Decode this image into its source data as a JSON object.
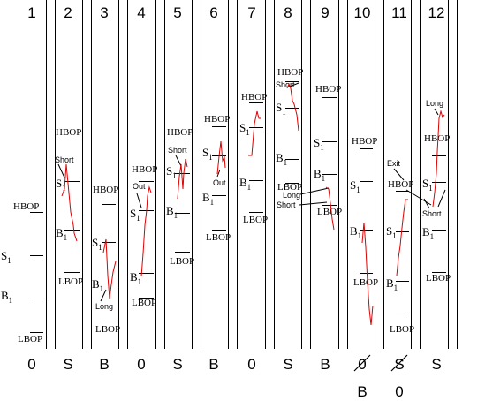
{
  "columns": [
    {
      "num": "1",
      "result": "0",
      "result_struck": false,
      "extra": ""
    },
    {
      "num": "2",
      "result": "S",
      "result_struck": false,
      "extra": ""
    },
    {
      "num": "3",
      "result": "B",
      "result_struck": false,
      "extra": ""
    },
    {
      "num": "4",
      "result": "0",
      "result_struck": false,
      "extra": ""
    },
    {
      "num": "5",
      "result": "S",
      "result_struck": false,
      "extra": ""
    },
    {
      "num": "6",
      "result": "B",
      "result_struck": false,
      "extra": ""
    },
    {
      "num": "7",
      "result": "0",
      "result_struck": false,
      "extra": ""
    },
    {
      "num": "8",
      "result": "S",
      "result_struck": false,
      "extra": ""
    },
    {
      "num": "9",
      "result": "B",
      "result_struck": false,
      "extra": ""
    },
    {
      "num": "10",
      "result": "0",
      "result_struck": true,
      "extra": "B"
    },
    {
      "num": "11",
      "result": "S",
      "result_struck": true,
      "extra": "0"
    },
    {
      "num": "12",
      "result": "S",
      "result_struck": false,
      "extra": ""
    }
  ],
  "labels": {
    "hbop": "HBOP",
    "lbop": "LBOP",
    "s": "S",
    "b": "B",
    "sub": "1"
  },
  "notes": {
    "short": "Short",
    "long": "Long",
    "out": "Out",
    "exit": "Exit"
  },
  "colors": {
    "price_line": "#dd0000",
    "ink": "#000000"
  }
}
